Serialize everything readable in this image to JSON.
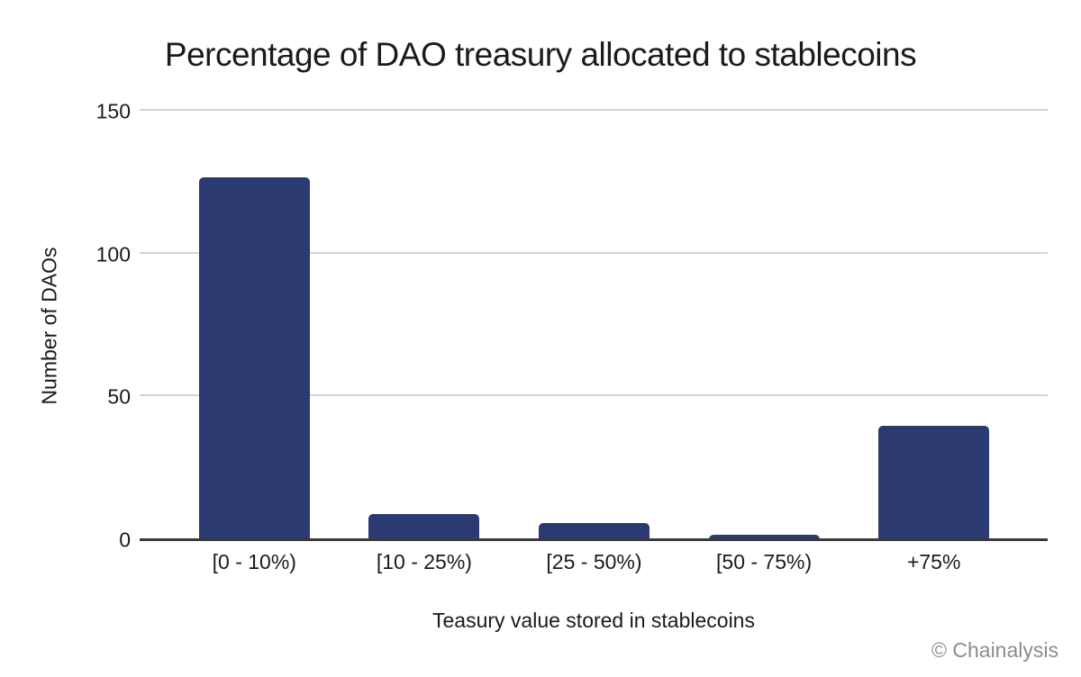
{
  "chart_data": {
    "type": "bar",
    "title": "Percentage of DAO treasury allocated to stablecoins",
    "categories": [
      "[0 - 10%)",
      "[10 - 25%)",
      "[25 - 50%)",
      "[50 - 75%)",
      "+75%"
    ],
    "values": [
      127,
      9,
      6,
      2,
      40
    ],
    "xlabel": "Teasury value stored in stablecoins",
    "ylabel": "Number of DAOs",
    "ylim": [
      0,
      150
    ],
    "yticks": [
      0,
      50,
      100,
      150
    ],
    "grid": true,
    "legend": false,
    "bar_color": "#2b3a70"
  },
  "colors": {
    "bar": "#2b3a70",
    "gridline": "#d4d4d4",
    "axis_line": "#3a3a3a",
    "text": "#1b1b1b",
    "watermark": "#8b8c90",
    "background": "#ffffff"
  },
  "footer": {
    "watermark": "© Chainalysis"
  }
}
